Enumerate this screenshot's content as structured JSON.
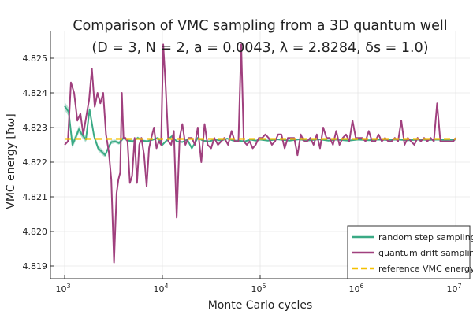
{
  "chart_data": {
    "type": "line",
    "title_line1": "Comparison of VMC sampling from a 3D quantum well",
    "title_line2": "(D = 3, N = 2, a = 0.0043, λ = 2.8284, δs = 1.0)",
    "xlabel": "Monte Carlo cycles",
    "ylabel": "VMC energy [ħω]",
    "xscale": "log",
    "xlim": [
      1000,
      10000000
    ],
    "ylim": [
      4.8187,
      4.8258
    ],
    "x_ticks": [
      {
        "value": 1000,
        "base": "10",
        "exp": "3"
      },
      {
        "value": 10000,
        "base": "10",
        "exp": "4"
      },
      {
        "value": 100000,
        "base": "10",
        "exp": "5"
      },
      {
        "value": 1000000,
        "base": "10",
        "exp": "6"
      },
      {
        "value": 10000000,
        "base": "10",
        "exp": "7"
      }
    ],
    "y_ticks": [
      {
        "value": 4.819,
        "label": "4.819"
      },
      {
        "value": 4.82,
        "label": "4.820"
      },
      {
        "value": 4.821,
        "label": "4.821"
      },
      {
        "value": 4.822,
        "label": "4.822"
      },
      {
        "value": 4.823,
        "label": "4.823"
      },
      {
        "value": 4.824,
        "label": "4.824"
      },
      {
        "value": 4.825,
        "label": "4.825"
      }
    ],
    "grid": true,
    "legend_position": "bottom-right",
    "series": [
      {
        "name": "random step sampling",
        "color": "#3aaa85",
        "band_color": "#3aaa85",
        "x": [
          1000,
          1100,
          1200,
          1300,
          1400,
          1500,
          1650,
          1800,
          2000,
          2200,
          2400,
          2600,
          2800,
          3000,
          3300,
          3600,
          4000,
          4500,
          5000,
          5600,
          6300,
          7000,
          8000,
          9000,
          10000,
          11000,
          12500,
          14000,
          16000,
          18000,
          20000,
          23000,
          26000,
          30000,
          35000,
          40000,
          46000,
          53000,
          60000,
          70000,
          80000,
          90000,
          100000,
          120000,
          150000,
          200000,
          250000,
          300000,
          400000,
          500000,
          600000,
          800000,
          1000000,
          1300000,
          1600000,
          2000000,
          2600000,
          3300000,
          4200000,
          5300000,
          6500000,
          8000000,
          10000000
        ],
        "values": [
          4.82362,
          4.82345,
          4.8225,
          4.82272,
          4.82295,
          4.8228,
          4.82265,
          4.82352,
          4.82275,
          4.8224,
          4.8223,
          4.8222,
          4.82242,
          4.82258,
          4.8226,
          4.82255,
          4.8227,
          4.82262,
          4.8226,
          4.8227,
          4.82262,
          4.8226,
          4.82265,
          4.8227,
          4.8225,
          4.82262,
          4.82275,
          4.8226,
          4.82258,
          4.82265,
          4.8224,
          4.8227,
          4.82262,
          4.8226,
          4.82265,
          4.82262,
          4.82268,
          4.82262,
          4.82262,
          4.8226,
          4.82265,
          4.82262,
          4.82265,
          4.82262,
          4.82266,
          4.82262,
          4.82266,
          4.82262,
          4.82266,
          4.82262,
          4.82265,
          4.82262,
          4.82265,
          4.82263,
          4.82265,
          4.82264,
          4.82265,
          4.82263,
          4.82265,
          4.82264,
          4.82265,
          4.82264,
          4.82265
        ],
        "error": [
          0.00012,
          0.00012,
          0.0001,
          0.0001,
          0.0001,
          9e-05,
          9e-05,
          9e-05,
          8e-05,
          8e-05,
          8e-05,
          7e-05,
          6e-05,
          6e-05,
          5e-05,
          5e-05,
          5e-05,
          4e-05,
          4e-05,
          4e-05,
          3e-05,
          3e-05,
          3e-05,
          3e-05,
          3e-05,
          3e-05,
          2e-05,
          2e-05,
          2e-05,
          2e-05,
          2e-05,
          2e-05,
          2e-05,
          2e-05,
          1e-05,
          1e-05,
          1e-05,
          1e-05,
          1e-05,
          1e-05,
          1e-05,
          1e-05,
          1e-05,
          1e-05,
          1e-05,
          1e-05,
          1e-05,
          1e-05,
          1e-05,
          1e-05,
          1e-05,
          1e-05,
          1e-05,
          1e-05,
          1e-05,
          1e-05,
          1e-05,
          1e-05,
          1e-05,
          1e-05,
          1e-05,
          1e-05,
          1e-05
        ]
      },
      {
        "name": "quantum drift sampling",
        "color": "#a0407e",
        "band_color": "#a0407e",
        "x": [
          1000,
          1080,
          1160,
          1250,
          1350,
          1450,
          1550,
          1660,
          1780,
          1900,
          2030,
          2170,
          2320,
          2480,
          2650,
          2830,
          3000,
          3200,
          3400,
          3550,
          3700,
          3850,
          4000,
          4200,
          4400,
          4650,
          4900,
          5200,
          5500,
          5800,
          6100,
          6500,
          6900,
          7300,
          7700,
          8200,
          8700,
          9200,
          9700,
          10200,
          10800,
          11500,
          12300,
          13100,
          14000,
          15000,
          16000,
          17200,
          18500,
          20000,
          21500,
          23000,
          25000,
          27000,
          29000,
          31500,
          34000,
          37000,
          40000,
          43000,
          47000,
          51000,
          55000,
          60000,
          64000,
          68000,
          73000,
          78000,
          84000,
          90000,
          97000,
          105000,
          113000,
          122000,
          132000,
          142000,
          153000,
          165000,
          178000,
          192000,
          207000,
          223000,
          241000,
          260000,
          280000,
          302000,
          326000,
          352000,
          380000,
          410000,
          442000,
          477000,
          515000,
          556000,
          600000,
          648000,
          700000,
          756000,
          816000,
          881000,
          951000,
          1027000,
          1109000,
          1197000,
          1292000,
          1395000,
          1506000,
          1626000,
          1755000,
          1895000,
          2046000,
          2209000,
          2385000,
          2575000,
          2780000,
          3001000,
          3240000,
          3498000,
          3777000,
          4078000,
          4403000,
          4754000,
          5133000,
          5542000,
          5983000,
          6460000,
          6975000,
          7531000,
          8131000,
          8779000,
          9479000,
          10000000
        ],
        "values": [
          4.8225,
          4.8226,
          4.8243,
          4.824,
          4.8232,
          4.8234,
          4.8228,
          4.8233,
          4.8238,
          4.8247,
          4.8236,
          4.824,
          4.8237,
          4.824,
          4.8228,
          4.8223,
          4.8215,
          4.8191,
          4.8211,
          4.8215,
          4.8217,
          4.824,
          4.8227,
          4.8227,
          4.8226,
          4.8214,
          4.8216,
          4.8227,
          4.8214,
          4.8225,
          4.8227,
          4.8222,
          4.8213,
          4.8224,
          4.8227,
          4.823,
          4.8224,
          4.8226,
          4.8225,
          4.8254,
          4.8242,
          4.8226,
          4.8225,
          4.8229,
          4.8204,
          4.8227,
          4.8231,
          4.8225,
          4.8227,
          4.8227,
          4.8225,
          4.823,
          4.822,
          4.8231,
          4.8225,
          4.8224,
          4.8227,
          4.8225,
          4.8226,
          4.8227,
          4.8225,
          4.8229,
          4.8226,
          4.8226,
          4.8254,
          4.8226,
          4.8225,
          4.8226,
          4.8224,
          4.8225,
          4.8227,
          4.8227,
          4.8228,
          4.8227,
          4.8225,
          4.8226,
          4.8228,
          4.8228,
          4.8224,
          4.8227,
          4.8227,
          4.8227,
          4.8222,
          4.8228,
          4.8226,
          4.8226,
          4.8227,
          4.8225,
          4.8228,
          4.8224,
          4.823,
          4.8227,
          4.8227,
          4.8225,
          4.8229,
          4.8225,
          4.8227,
          4.8228,
          4.8226,
          4.8232,
          4.8227,
          4.8227,
          4.8227,
          4.8226,
          4.8229,
          4.8226,
          4.8226,
          4.8228,
          4.8226,
          4.8227,
          4.8226,
          4.8226,
          4.8227,
          4.8226,
          4.8232,
          4.8225,
          4.8227,
          4.8226,
          4.8225,
          4.8227,
          4.8226,
          4.8227,
          4.8226,
          4.8227,
          4.8226,
          4.8237,
          4.8226,
          4.8226,
          4.8226,
          4.8226,
          4.8226,
          4.8227
        ],
        "error": [
          4e-05,
          4e-05,
          4e-05,
          4e-05,
          4e-05,
          4e-05,
          3e-05,
          3e-05,
          3e-05,
          3e-05,
          3e-05,
          3e-05,
          3e-05,
          3e-05,
          3e-05,
          3e-05,
          3e-05,
          3e-05,
          3e-05,
          2e-05,
          2e-05,
          2e-05,
          2e-05,
          2e-05,
          2e-05,
          2e-05,
          2e-05,
          2e-05,
          2e-05,
          2e-05,
          2e-05,
          2e-05,
          2e-05,
          2e-05,
          2e-05,
          2e-05,
          2e-05,
          2e-05,
          2e-05,
          2e-05,
          2e-05,
          2e-05,
          2e-05,
          2e-05,
          2e-05,
          2e-05,
          1e-05,
          1e-05,
          1e-05,
          1e-05,
          1e-05,
          1e-05,
          1e-05,
          1e-05,
          1e-05,
          1e-05,
          1e-05,
          1e-05,
          1e-05,
          1e-05,
          1e-05,
          1e-05,
          1e-05,
          1e-05,
          1e-05,
          1e-05,
          1e-05,
          1e-05,
          1e-05,
          1e-05,
          1e-05,
          1e-05,
          1e-05,
          1e-05,
          1e-05,
          1e-05,
          1e-05,
          1e-05,
          1e-05,
          1e-05,
          1e-05,
          1e-05,
          1e-05,
          1e-05,
          1e-05,
          1e-05,
          1e-05,
          1e-05,
          1e-05,
          1e-05,
          1e-05,
          1e-05,
          1e-05,
          1e-05,
          1e-05,
          1e-05,
          1e-05,
          1e-05,
          1e-05,
          1e-05,
          1e-05,
          1e-05,
          1e-05,
          1e-05,
          1e-05,
          1e-05,
          1e-05,
          1e-05,
          1e-05,
          1e-05,
          1e-05,
          1e-05,
          1e-05,
          1e-05,
          1e-05,
          1e-05,
          1e-05,
          1e-05,
          1e-05,
          1e-05,
          1e-05,
          1e-05,
          1e-05,
          1e-05,
          1e-05,
          1e-05,
          1e-05,
          1e-05,
          1e-05,
          1e-05,
          1e-05,
          1e-05
        ]
      },
      {
        "name": "reference VMC energy",
        "color": "#f5c000",
        "dashed": true,
        "x": [
          1000,
          10000000
        ],
        "values": [
          4.82267,
          4.82267
        ]
      }
    ]
  }
}
